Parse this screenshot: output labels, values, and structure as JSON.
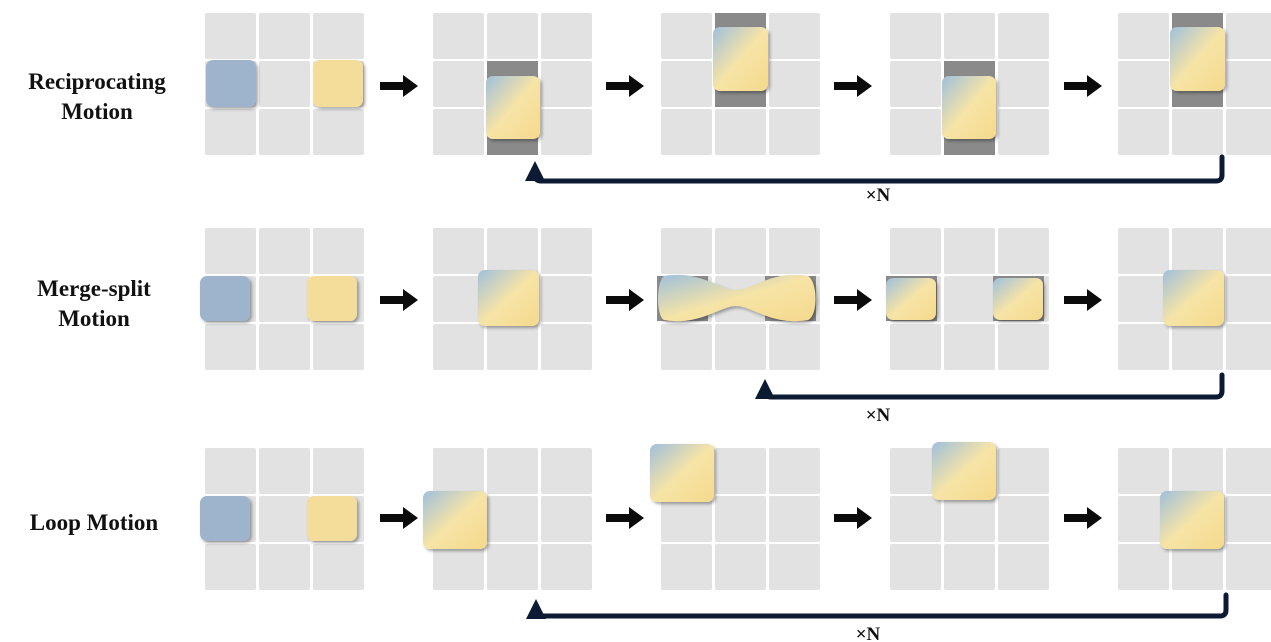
{
  "rows": [
    {
      "label_lines": [
        "Reciprocating",
        "Motion"
      ],
      "repeat_label": "×N"
    },
    {
      "label_lines": [
        "Merge-split",
        "Motion"
      ],
      "repeat_label": "×N"
    },
    {
      "label_lines": [
        "Loop Motion"
      ],
      "repeat_label": "×N"
    }
  ],
  "colors": {
    "cell": "#e2e2e2",
    "cell_dark": "#8a8a8a",
    "tile_blue": "#9eb4cc",
    "tile_yellow": "#f4dd9a",
    "arrow": "#0b0b0b",
    "loop_arrow": "#0d1a33"
  }
}
